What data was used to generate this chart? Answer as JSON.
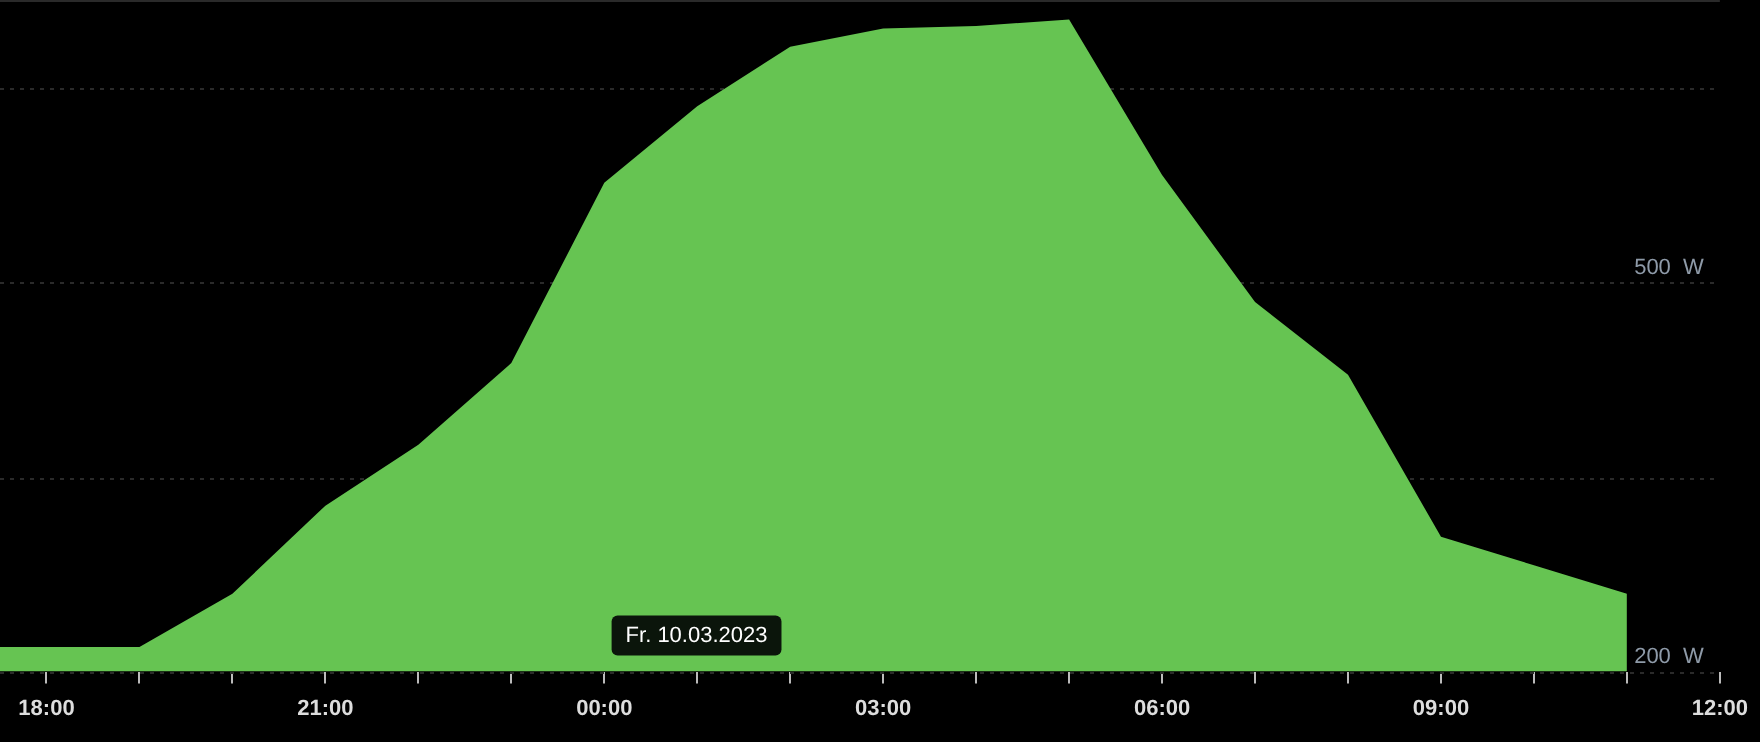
{
  "chart_data": {
    "type": "area",
    "x": [
      "2023-03-09T17:30",
      "2023-03-09T19:00",
      "2023-03-09T20:00",
      "2023-03-09T21:00",
      "2023-03-09T22:00",
      "2023-03-09T23:00",
      "2023-03-10T00:00",
      "2023-03-10T01:00",
      "2023-03-10T02:00",
      "2023-03-10T03:00",
      "2023-03-10T04:00",
      "2023-03-10T05:00",
      "2023-03-10T06:00",
      "2023-03-10T07:00",
      "2023-03-10T08:00",
      "2023-03-10T09:00",
      "2023-03-10T10:00",
      "2023-03-10T11:00"
    ],
    "series": [
      {
        "color": "#66c452",
        "values": [
          219,
          219,
          260,
          328,
          375,
          438,
          577,
          636,
          682,
          696,
          698,
          703,
          583,
          485,
          429,
          304,
          282,
          260
        ]
      }
    ],
    "xlim": [
      "2023-03-09T17:30",
      "2023-03-10T12:00"
    ],
    "xticks": [
      {
        "value": "2023-03-09T18:00",
        "label": "18:00"
      },
      {
        "value": "2023-03-09T19:00",
        "label": null
      },
      {
        "value": "2023-03-09T20:00",
        "label": null
      },
      {
        "value": "2023-03-09T21:00",
        "label": "21:00"
      },
      {
        "value": "2023-03-09T22:00",
        "label": null
      },
      {
        "value": "2023-03-09T23:00",
        "label": null
      },
      {
        "value": "2023-03-10T00:00",
        "label": "00:00"
      },
      {
        "value": "2023-03-10T01:00",
        "label": null
      },
      {
        "value": "2023-03-10T02:00",
        "label": null
      },
      {
        "value": "2023-03-10T03:00",
        "label": "03:00"
      },
      {
        "value": "2023-03-10T04:00",
        "label": null
      },
      {
        "value": "2023-03-10T05:00",
        "label": null
      },
      {
        "value": "2023-03-10T06:00",
        "label": "06:00"
      },
      {
        "value": "2023-03-10T07:00",
        "label": null
      },
      {
        "value": "2023-03-10T08:00",
        "label": null
      },
      {
        "value": "2023-03-10T09:00",
        "label": "09:00"
      },
      {
        "value": "2023-03-10T10:00",
        "label": null
      },
      {
        "value": "2023-03-10T11:00",
        "label": null
      },
      {
        "value": "2023-03-10T12:00",
        "label": "12:00"
      }
    ],
    "ylim": [
      200,
      718
    ],
    "yticks": [
      {
        "value": 200,
        "label": "200  W"
      },
      {
        "value": 350,
        "label": null
      },
      {
        "value": 500,
        "label": "500  W"
      },
      {
        "value": 650,
        "label": null
      }
    ],
    "grid": "y",
    "annotations": [
      "Fr. 10.03.2023"
    ]
  }
}
